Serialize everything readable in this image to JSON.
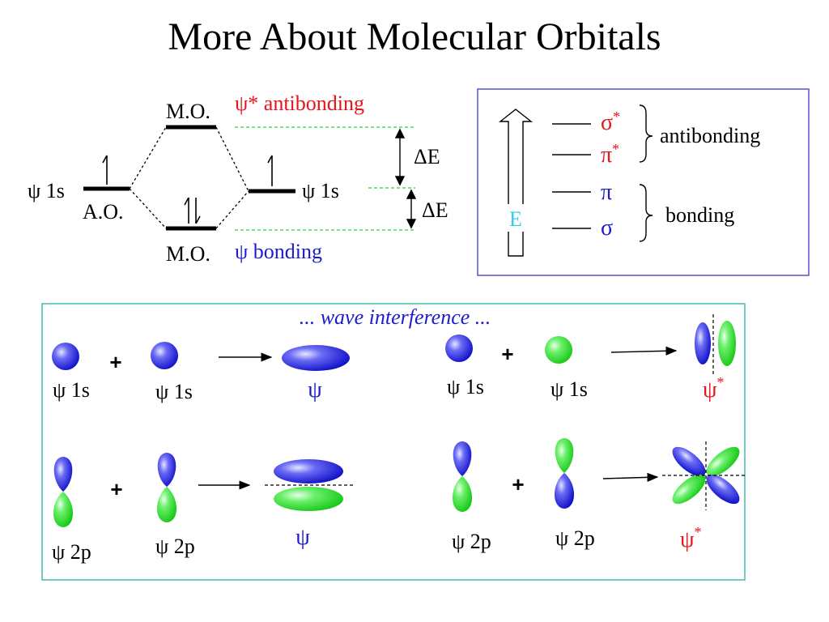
{
  "slide": {
    "title": "More About Molecular Orbitals"
  },
  "mo_diagram": {
    "mo_top_label": "M.O.",
    "mo_bottom_label": "M.O.",
    "ao_label": "A.O.",
    "left_ao": "ψ 1s",
    "right_ao": "ψ 1s",
    "antibonding_label": "ψ* antibonding",
    "bonding_label": "ψ bonding",
    "delta_e_top": "ΔE",
    "delta_e_bottom": "ΔE",
    "arrow_up": "↿",
    "arrow_pair": "⇅"
  },
  "energy_box": {
    "axis_label": "E",
    "sigma_star": "σ",
    "pi_star": "π",
    "star": "*",
    "pi": "π",
    "sigma": "σ",
    "antibonding": "antibonding",
    "bonding": "bonding"
  },
  "interference": {
    "heading": "... wave interference ...",
    "plus": "+",
    "psi": "ψ",
    "star": "*",
    "s_label": "ψ 1s",
    "p_label": "ψ 2p"
  },
  "colors": {
    "antibonding": "#e8141b",
    "bonding": "#1c1ccf",
    "green_guide": "#2fd02f",
    "box_border_top": "#5555cc",
    "box_border_bottom": "#44bbaa",
    "energy_label": "#33ccee",
    "orbital_blue": "#2a2ae0",
    "orbital_green": "#2ee02e"
  }
}
